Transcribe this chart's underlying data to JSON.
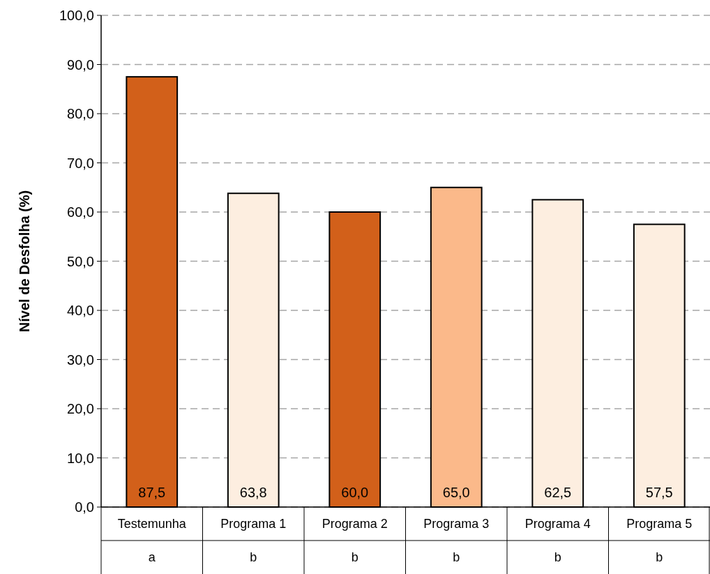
{
  "chart_data": {
    "type": "bar",
    "ylabel": "Nível de Desfolha (%)",
    "categories": [
      "Testemunha",
      "Programa 1",
      "Programa 2",
      "Programa 3",
      "Programa 4",
      "Programa 5"
    ],
    "values": [
      87.5,
      63.8,
      60.0,
      65.0,
      62.5,
      57.5
    ],
    "colors": [
      "#d2601a",
      "#fdeee0",
      "#d2601a",
      "#fbb98a",
      "#fdeee0",
      "#fdeee0"
    ],
    "value_labels": [
      "87,5",
      "63,8",
      "60,0",
      "65,0",
      "62,5",
      "57,5"
    ],
    "ylim": [
      0,
      100
    ],
    "yticks": [
      {
        "value": 0,
        "label": "0,0"
      },
      {
        "value": 10,
        "label": "10,0"
      },
      {
        "value": 20,
        "label": "20,0"
      },
      {
        "value": 30,
        "label": "30,0"
      },
      {
        "value": 40,
        "label": "40,0"
      },
      {
        "value": 50,
        "label": "50,0"
      },
      {
        "value": 60,
        "label": "60,0"
      },
      {
        "value": 70,
        "label": "70,0"
      },
      {
        "value": 80,
        "label": "80,0"
      },
      {
        "value": 90,
        "label": "90,0"
      },
      {
        "value": 100,
        "label": "100,0"
      }
    ],
    "grid": "y",
    "annotations": [
      "a",
      "b",
      "b",
      "b",
      "b",
      "b"
    ]
  }
}
